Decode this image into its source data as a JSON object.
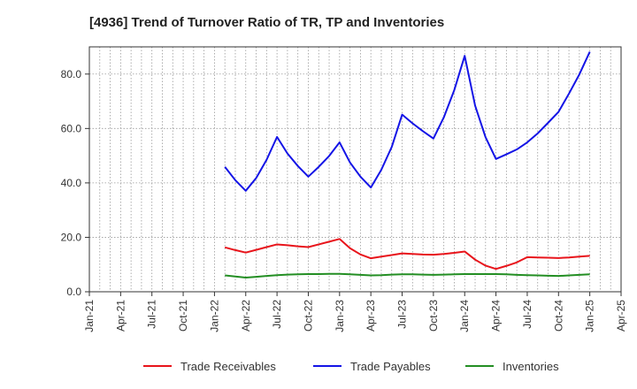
{
  "chart_data": {
    "type": "line",
    "title": "[4936]  Trend of Turnover Ratio of TR, TP and Inventories",
    "xlabel": "",
    "ylabel": "",
    "x_tick_labels": [
      "Jan-21",
      "Apr-21",
      "Jul-21",
      "Oct-21",
      "Jan-22",
      "Apr-22",
      "Jul-22",
      "Oct-22",
      "Jan-23",
      "Apr-23",
      "Jul-23",
      "Oct-23",
      "Jan-24",
      "Apr-24",
      "Jul-24",
      "Oct-24",
      "Jan-25",
      "Apr-25"
    ],
    "y_tick_labels": [
      "0.0",
      "20.0",
      "40.0",
      "60.0",
      "80.0"
    ],
    "ylim": [
      0,
      90
    ],
    "grid": true,
    "legend_position": "bottom",
    "x": [
      "Feb-22",
      "Mar-22",
      "Apr-22",
      "May-22",
      "Jun-22",
      "Jul-22",
      "Aug-22",
      "Sep-22",
      "Oct-22",
      "Nov-22",
      "Dec-22",
      "Jan-23",
      "Feb-23",
      "Mar-23",
      "Apr-23",
      "May-23",
      "Jun-23",
      "Jul-23",
      "Aug-23",
      "Sep-23",
      "Oct-23",
      "Nov-23",
      "Dec-23",
      "Jan-24",
      "Feb-24",
      "Mar-24",
      "Apr-24",
      "May-24",
      "Jun-24",
      "Jul-24",
      "Aug-24",
      "Sep-24",
      "Oct-24",
      "Nov-24",
      "Dec-24",
      "Jan-25"
    ],
    "series": [
      {
        "name": "Trade Receivables",
        "color": "#e8141b",
        "values": [
          16.3,
          15.3,
          14.4,
          15.4,
          16.4,
          17.4,
          17.1,
          16.7,
          16.4,
          17.4,
          18.4,
          19.4,
          16.0,
          13.7,
          12.3,
          12.9,
          13.5,
          14.1,
          13.9,
          13.7,
          13.6,
          13.9,
          14.3,
          14.8,
          11.8,
          9.6,
          8.4,
          9.5,
          10.8,
          12.7,
          12.6,
          12.5,
          12.4,
          12.6,
          12.9,
          13.2
        ]
      },
      {
        "name": "Trade Payables",
        "color": "#1414e6",
        "values": [
          45.9,
          41.0,
          37.1,
          41.8,
          48.5,
          56.9,
          50.8,
          46.2,
          42.3,
          45.9,
          49.9,
          54.9,
          47.5,
          42.3,
          38.3,
          44.8,
          53.2,
          65.1,
          61.9,
          59.0,
          56.3,
          64.1,
          74.1,
          86.7,
          68.4,
          56.8,
          48.8,
          50.5,
          52.3,
          54.9,
          58.2,
          62.1,
          66.1,
          72.8,
          79.9,
          88.2
        ]
      },
      {
        "name": "Inventories",
        "color": "#238e23",
        "values": [
          6.0,
          5.6,
          5.2,
          5.5,
          5.8,
          6.1,
          6.3,
          6.4,
          6.5,
          6.5,
          6.6,
          6.6,
          6.4,
          6.2,
          6.0,
          6.1,
          6.3,
          6.4,
          6.4,
          6.3,
          6.2,
          6.3,
          6.4,
          6.5,
          6.5,
          6.5,
          6.5,
          6.4,
          6.2,
          6.1,
          6.0,
          5.9,
          5.8,
          6.0,
          6.2,
          6.4
        ]
      }
    ]
  }
}
